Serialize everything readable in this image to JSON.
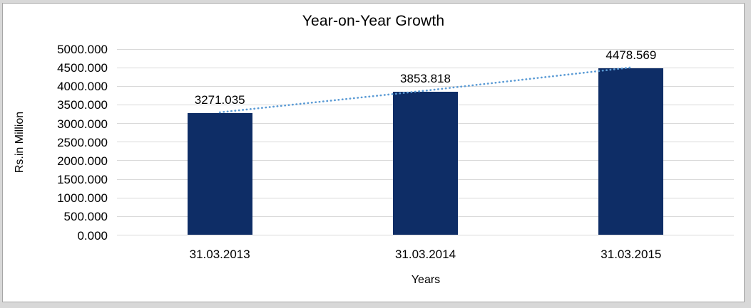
{
  "page": {
    "background_color": "#d8d8d8",
    "chart_background": "#ffffff",
    "chart_border_color": "#a6a6a6"
  },
  "chart_data": {
    "type": "bar",
    "title": "Year-on-Year Growth",
    "xlabel": "Years",
    "ylabel": "Rs.in Million",
    "categories": [
      "31.03.2013",
      "31.03.2014",
      "31.03.2015"
    ],
    "values": [
      3271.035,
      3853.818,
      4478.569
    ],
    "value_labels": [
      "3271.035",
      "3853.818",
      "4478.569"
    ],
    "y_ticks": [
      "0.000",
      "500.000",
      "1000.000",
      "1500.000",
      "2000.000",
      "2500.000",
      "3000.000",
      "3500.000",
      "4000.000",
      "4500.000",
      "5000.000"
    ],
    "ylim": [
      0,
      5000
    ],
    "grid": true,
    "legend_position": "none",
    "bar_color": "#0e2d66",
    "gridline_color": "#d9d9d9",
    "text_color": "#000000",
    "trendline": {
      "type": "linear",
      "style": "dotted",
      "color": "#5b9bd5"
    }
  }
}
